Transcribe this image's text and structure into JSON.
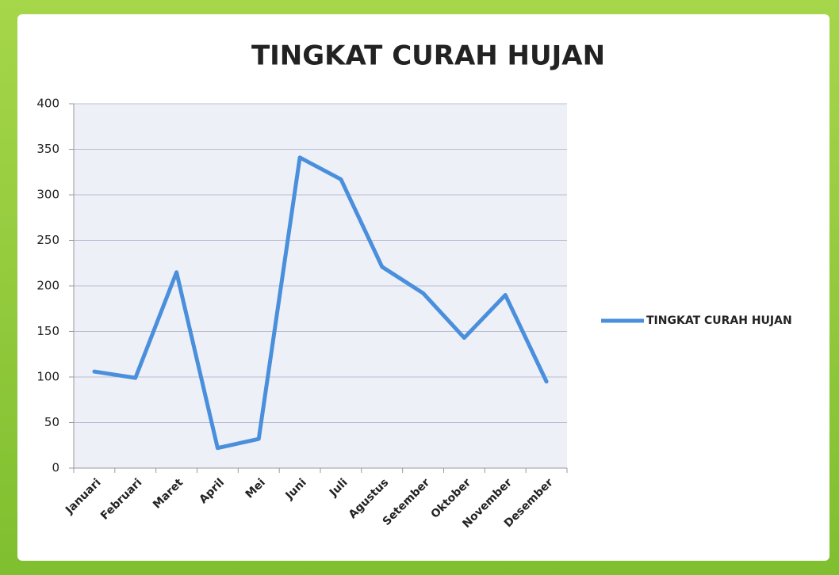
{
  "chart_data": {
    "type": "line",
    "title": "TINGKAT CURAH HUJAN",
    "categories": [
      "Januari",
      "Februari",
      "Maret",
      "April",
      "Mei",
      "Juni",
      "Juli",
      "Agustus",
      "Setember",
      "Oktober",
      "November",
      "Desember"
    ],
    "series": [
      {
        "name": "TINGKAT CURAH HUJAN",
        "color": "#4a8fdc",
        "values": [
          106,
          99,
          215,
          22,
          32,
          341,
          317,
          221,
          192,
          143,
          190,
          95
        ]
      }
    ],
    "ylim": [
      0,
      400
    ],
    "yticks": [
      0,
      50,
      100,
      150,
      200,
      250,
      300,
      350,
      400
    ],
    "grid": true,
    "legend": "right"
  }
}
